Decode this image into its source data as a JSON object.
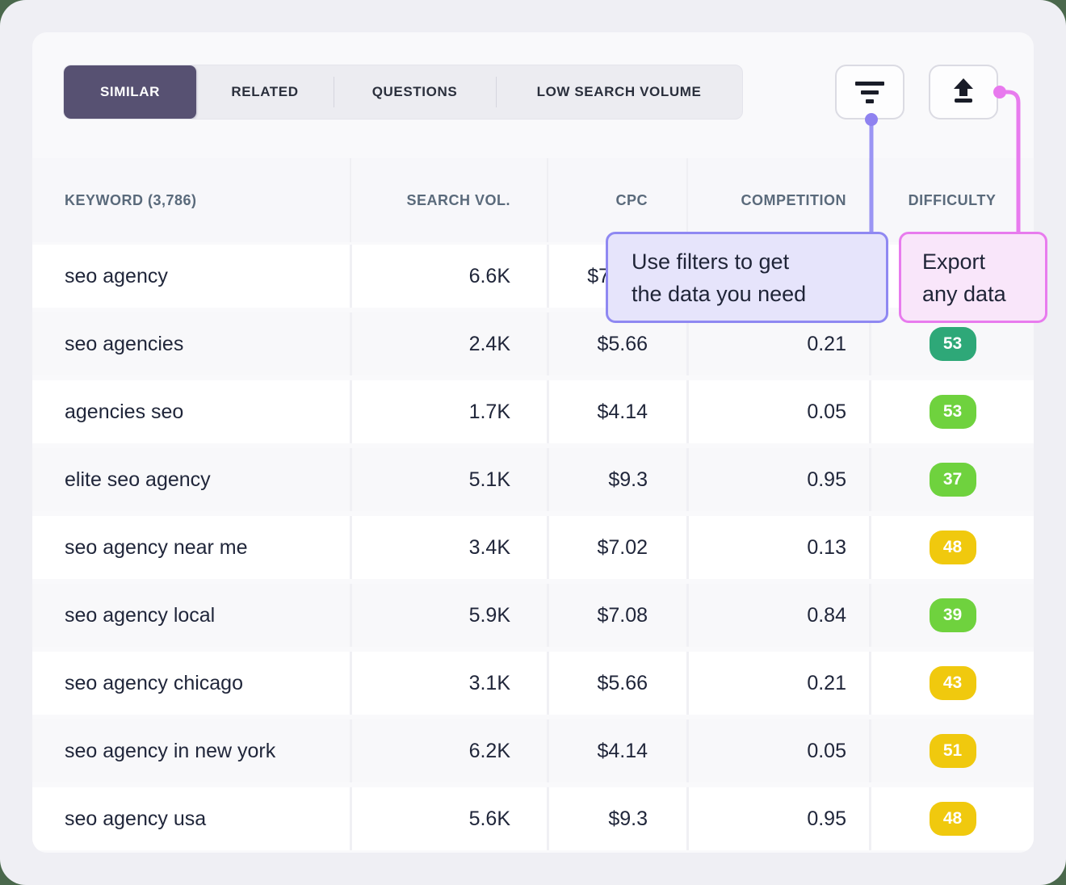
{
  "tabs": {
    "items": [
      {
        "label": "SIMILAR",
        "active": true
      },
      {
        "label": "RELATED",
        "active": false
      },
      {
        "label": "QUESTIONS",
        "active": false
      },
      {
        "label": "LOW SEARCH VOLUME",
        "active": false
      }
    ]
  },
  "toolbar": {
    "filter_button_icon": "filter-icon",
    "export_button_icon": "upload-icon"
  },
  "tooltips": {
    "filter": {
      "lines": [
        "Use filters to get",
        "the data you need"
      ]
    },
    "export": {
      "lines": [
        "Export",
        "any data"
      ]
    }
  },
  "table": {
    "columns": [
      {
        "label": "KEYWORD (3,786)"
      },
      {
        "label": "SEARCH VOL."
      },
      {
        "label": "CPC"
      },
      {
        "label": "COMPETITION"
      },
      {
        "label": "DIFFICULTY"
      }
    ],
    "rows": [
      {
        "keyword": "seo agency",
        "search_vol": "6.6K",
        "cpc": "$7",
        "competition": "",
        "difficulty": null,
        "difficulty_color": null
      },
      {
        "keyword": "seo agencies",
        "search_vol": "2.4K",
        "cpc": "$5.66",
        "competition": "0.21",
        "difficulty": "53",
        "difficulty_color": "teal"
      },
      {
        "keyword": "agencies seo",
        "search_vol": "1.7K",
        "cpc": "$4.14",
        "competition": "0.05",
        "difficulty": "53",
        "difficulty_color": "green"
      },
      {
        "keyword": "elite seo agency",
        "search_vol": "5.1K",
        "cpc": "$9.3",
        "competition": "0.95",
        "difficulty": "37",
        "difficulty_color": "green"
      },
      {
        "keyword": "seo agency near me",
        "search_vol": "3.4K",
        "cpc": "$7.02",
        "competition": "0.13",
        "difficulty": "48",
        "difficulty_color": "yellow"
      },
      {
        "keyword": "seo agency local",
        "search_vol": "5.9K",
        "cpc": "$7.08",
        "competition": "0.84",
        "difficulty": "39",
        "difficulty_color": "green"
      },
      {
        "keyword": "seo agency chicago",
        "search_vol": "3.1K",
        "cpc": "$5.66",
        "competition": "0.21",
        "difficulty": "43",
        "difficulty_color": "yellow"
      },
      {
        "keyword": "seo agency in new york",
        "search_vol": "6.2K",
        "cpc": "$4.14",
        "competition": "0.05",
        "difficulty": "51",
        "difficulty_color": "yellow"
      },
      {
        "keyword": "seo agency usa",
        "search_vol": "5.6K",
        "cpc": "$9.3",
        "competition": "0.95",
        "difficulty": "48",
        "difficulty_color": "yellow"
      }
    ]
  },
  "colors": {
    "active_tab": "#575172",
    "filter_accent": "#8F88F2",
    "export_accent": "#E87BEE",
    "badge_teal": "#2EA878",
    "badge_green": "#6FD23E",
    "badge_yellow": "#F0C90E",
    "outer_corner_green": "#4A684C"
  }
}
